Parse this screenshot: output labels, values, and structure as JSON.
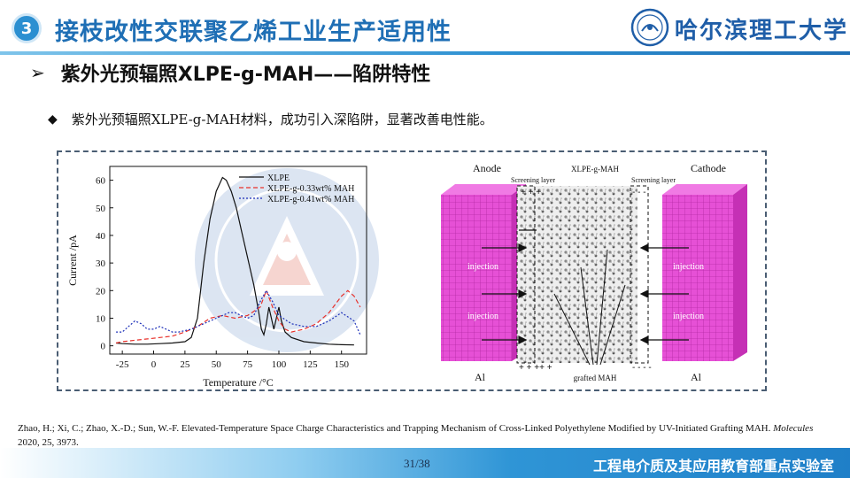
{
  "header": {
    "section_number": "3",
    "title": "接枝改性交联聚乙烯工业生产适用性",
    "university_name": "哈尔滨理工大学"
  },
  "subheading": "紫外光预辐照XLPE-g-MAH——陷阱特性",
  "bullet": "紫外光预辐照XLPE-g-MAH材料，成功引入深陷阱，显著改善电性能。",
  "citation": {
    "authors": "Zhao, H.; Xi, C.; Zhao, X.-D.; Sun, W.-F. Elevated-Temperature Space Charge Characteristics and Trapping Mechanism of Cross-Linked Polyethylene Modified by UV-Initiated Grafting MAH.",
    "journal": "Molecules",
    "details": " 2020, 25, 3973."
  },
  "footer": {
    "page": "31/38",
    "lab_name": "工程电介质及其应用教育部重点实验室"
  },
  "colors": {
    "brand_blue": "#1f6fb5",
    "xlpe": "#111111",
    "mah033": "#e8312b",
    "mah041": "#1c2fb8",
    "electrode": "#e040d0"
  },
  "chart_data": {
    "type": "line",
    "title": "",
    "xlabel": "Temperature /°C",
    "ylabel": "Current /pA",
    "xlim": [
      -35,
      170
    ],
    "ylim": [
      -3,
      65
    ],
    "xticks": [
      -25,
      0,
      25,
      50,
      75,
      100,
      125,
      150
    ],
    "yticks": [
      0,
      10,
      20,
      30,
      40,
      50,
      60
    ],
    "legend_position": "top-right",
    "series": [
      {
        "name": "XLPE",
        "style": "solid",
        "color": "#111111",
        "x": [
          -30,
          -25,
          -15,
          -5,
          5,
          15,
          25,
          30,
          35,
          40,
          45,
          50,
          55,
          58,
          62,
          66,
          70,
          75,
          80,
          84,
          86,
          88,
          90,
          92,
          94,
          96,
          98,
          100,
          102,
          105,
          110,
          120,
          130,
          140,
          150,
          160
        ],
        "y": [
          1,
          0.8,
          0.6,
          0.6,
          0.8,
          1,
          1.5,
          3,
          10,
          30,
          46,
          56,
          61,
          60,
          56,
          50,
          42,
          32,
          22,
          12,
          6,
          4,
          8,
          14,
          10,
          6,
          10,
          14,
          9,
          5,
          3,
          1.5,
          1,
          0.6,
          0.4,
          0.3
        ]
      },
      {
        "name": "XLPE-g-0.33wt% MAH",
        "style": "dashed",
        "color": "#e8312b",
        "x": [
          -30,
          -25,
          -15,
          -5,
          5,
          15,
          25,
          35,
          45,
          55,
          65,
          75,
          85,
          90,
          95,
          100,
          105,
          110,
          120,
          130,
          140,
          150,
          155,
          160,
          165
        ],
        "y": [
          1,
          1.5,
          2,
          2.5,
          3,
          3.5,
          5,
          7,
          10,
          11,
          10,
          11,
          14,
          20,
          14,
          9,
          6,
          5,
          6,
          8,
          12,
          18,
          20,
          18,
          14
        ]
      },
      {
        "name": "XLPE-g-0.41wt% MAH",
        "style": "dotted",
        "color": "#1c2fb8",
        "x": [
          -30,
          -25,
          -20,
          -15,
          -10,
          -5,
          0,
          5,
          10,
          15,
          20,
          30,
          40,
          50,
          55,
          60,
          65,
          70,
          75,
          80,
          85,
          90,
          95,
          100,
          110,
          120,
          130,
          140,
          150,
          160,
          165
        ],
        "y": [
          5,
          5,
          7,
          9,
          8,
          6,
          6,
          7,
          6,
          5,
          5,
          6,
          8,
          10,
          11,
          12,
          12,
          11,
          10,
          11,
          16,
          20,
          16,
          11,
          8,
          7,
          7,
          9,
          12,
          9,
          4
        ]
      }
    ]
  },
  "schematic": {
    "anode_label": "Anode",
    "cathode_label": "Cathode",
    "material_label": "XLPE-g-MAH",
    "screening_layer_left": "Screening layer",
    "screening_layer_right": "Screening layer",
    "charge_left_top": "+ + +",
    "charge_right_top": "- - -",
    "charge_left_bottom": "+ + ++ +",
    "charge_right_bottom": "- - - -",
    "injection_left_1": "injection",
    "injection_left_2": "injection",
    "injection_right_1": "injection",
    "injection_right_2": "injection",
    "electrode_left": "Al",
    "electrode_right": "Al",
    "grafted_label": "grafted MAH"
  }
}
